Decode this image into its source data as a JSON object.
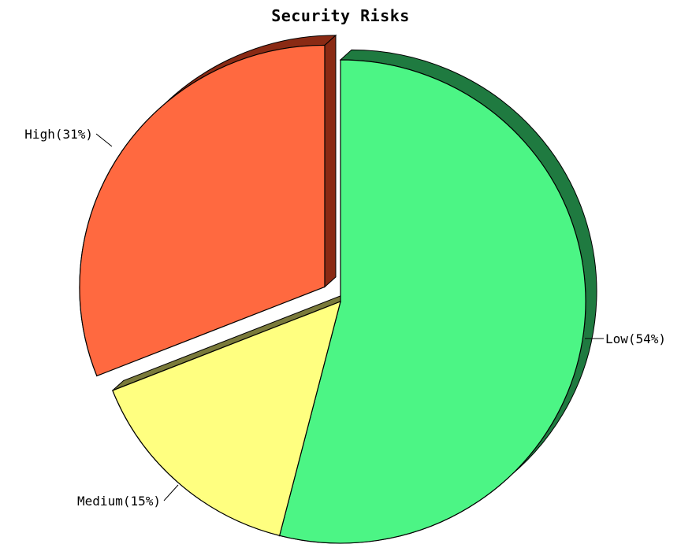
{
  "chart_data": {
    "type": "pie",
    "title": "Security Risks",
    "slices": [
      {
        "category": "Low",
        "percent": 54,
        "label": "Low(54%)",
        "color": "#4cf585",
        "side_color": "#1f7a40",
        "exploded": false
      },
      {
        "category": "Medium",
        "percent": 15,
        "label": "Medium(15%)",
        "color": "#ffff80",
        "side_color": "#7a7a3a",
        "exploded": false
      },
      {
        "category": "High",
        "percent": 31,
        "label": "High(31%)",
        "color": "#ff6940",
        "side_color": "#8a2a14",
        "exploded": true
      }
    ],
    "style": "3d-pie"
  }
}
